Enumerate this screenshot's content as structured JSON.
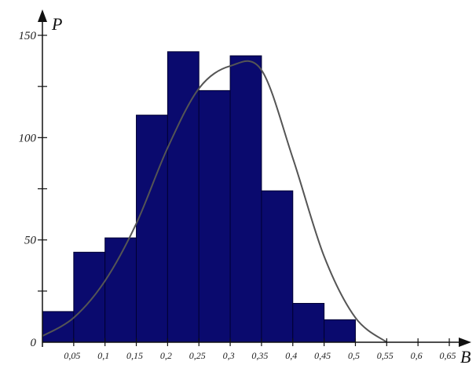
{
  "chart_data": {
    "type": "bar",
    "title": "",
    "xlabel": "B",
    "ylabel": "P",
    "xlim": [
      0,
      0.65
    ],
    "ylim": [
      0,
      150
    ],
    "x_ticks": [
      "0,05",
      "0,1",
      "0,15",
      "0,2",
      "0,25",
      "0,3",
      "0,35",
      "0,4",
      "0,45",
      "0,5",
      "0,55",
      "0,6",
      "0,65"
    ],
    "y_ticks": [
      "0",
      "50",
      "100",
      "150"
    ],
    "bins": [
      {
        "from": 0.0,
        "to": 0.05,
        "value": 15
      },
      {
        "from": 0.05,
        "to": 0.1,
        "value": 44
      },
      {
        "from": 0.1,
        "to": 0.15,
        "value": 51
      },
      {
        "from": 0.15,
        "to": 0.2,
        "value": 111
      },
      {
        "from": 0.2,
        "to": 0.25,
        "value": 142
      },
      {
        "from": 0.25,
        "to": 0.3,
        "value": 123
      },
      {
        "from": 0.3,
        "to": 0.35,
        "value": 140
      },
      {
        "from": 0.35,
        "to": 0.4,
        "value": 74
      },
      {
        "from": 0.4,
        "to": 0.45,
        "value": 19
      },
      {
        "from": 0.45,
        "to": 0.5,
        "value": 11
      }
    ],
    "fitted_curve": {
      "x": [
        0.0,
        0.05,
        0.1,
        0.15,
        0.2,
        0.25,
        0.3,
        0.35,
        0.4,
        0.45,
        0.5,
        0.55
      ],
      "y": [
        3,
        12,
        30,
        58,
        95,
        124,
        135,
        133,
        90,
        42,
        12,
        0
      ]
    },
    "colors": {
      "bar": "#0a0a6e",
      "bar_edge": "#000033",
      "curve": "#555555",
      "axis": "#111111"
    },
    "grid": false
  }
}
